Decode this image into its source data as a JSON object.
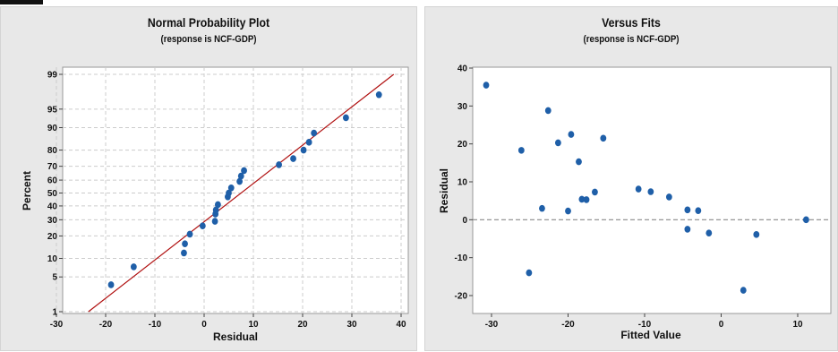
{
  "chart_data": [
    {
      "type": "scatter",
      "title": "Normal Probability Plot",
      "subtitle": "(response is NCF-GDP)",
      "xlabel": "Residual",
      "ylabel": "Percent",
      "xlim": [
        -30,
        40
      ],
      "y_scale": "normal-probability",
      "x_ticks": [
        -30,
        -20,
        -10,
        0,
        10,
        20,
        30,
        40
      ],
      "y_ticks": [
        1,
        5,
        10,
        20,
        30,
        40,
        50,
        60,
        70,
        80,
        90,
        95,
        99
      ],
      "grid": true,
      "fit_line": {
        "from": [
          -23.5,
          1
        ],
        "to": [
          38.5,
          99
        ]
      },
      "points": [
        {
          "x": -18.9,
          "y": 3.6
        },
        {
          "x": -14.3,
          "y": 7.4
        },
        {
          "x": -4.1,
          "y": 12
        },
        {
          "x": -3.9,
          "y": 16
        },
        {
          "x": -2.9,
          "y": 21
        },
        {
          "x": -0.3,
          "y": 26
        },
        {
          "x": 2.2,
          "y": 29
        },
        {
          "x": 2.3,
          "y": 34
        },
        {
          "x": 2.4,
          "y": 37
        },
        {
          "x": 2.8,
          "y": 41
        },
        {
          "x": 4.8,
          "y": 47
        },
        {
          "x": 5.0,
          "y": 50
        },
        {
          "x": 5.5,
          "y": 54
        },
        {
          "x": 7.2,
          "y": 59
        },
        {
          "x": 7.5,
          "y": 63
        },
        {
          "x": 8.1,
          "y": 67
        },
        {
          "x": 15.2,
          "y": 71
        },
        {
          "x": 18.1,
          "y": 75
        },
        {
          "x": 20.2,
          "y": 80
        },
        {
          "x": 21.3,
          "y": 84
        },
        {
          "x": 22.3,
          "y": 88
        },
        {
          "x": 28.8,
          "y": 93
        },
        {
          "x": 35.5,
          "y": 97.3
        }
      ]
    },
    {
      "type": "scatter",
      "title": "Versus Fits",
      "subtitle": "(response is NCF-GDP)",
      "xlabel": "Fitted Value",
      "ylabel": "Residual",
      "xlim": [
        -34,
        13
      ],
      "ylim": [
        -23,
        41
      ],
      "x_ticks": [
        -30,
        -20,
        -10,
        0,
        10
      ],
      "y_ticks": [
        -20,
        -10,
        0,
        10,
        20,
        30,
        40
      ],
      "reference_line": 0,
      "grid": false,
      "points": [
        {
          "x": -30.7,
          "y": 35.5
        },
        {
          "x": -26.1,
          "y": 18.3
        },
        {
          "x": -25.1,
          "y": -14.0
        },
        {
          "x": -23.4,
          "y": 3.0
        },
        {
          "x": -22.6,
          "y": 28.8
        },
        {
          "x": -21.3,
          "y": 20.3
        },
        {
          "x": -20.0,
          "y": 2.3
        },
        {
          "x": -19.6,
          "y": 22.5
        },
        {
          "x": -18.6,
          "y": 15.3
        },
        {
          "x": -18.2,
          "y": 5.4
        },
        {
          "x": -17.6,
          "y": 5.3
        },
        {
          "x": -16.5,
          "y": 7.3
        },
        {
          "x": -15.4,
          "y": 21.5
        },
        {
          "x": -10.8,
          "y": 8.1
        },
        {
          "x": -9.2,
          "y": 7.4
        },
        {
          "x": -6.8,
          "y": 6.0
        },
        {
          "x": -4.4,
          "y": 2.6
        },
        {
          "x": -4.4,
          "y": -2.5
        },
        {
          "x": -3.0,
          "y": 2.4
        },
        {
          "x": -1.6,
          "y": -3.5
        },
        {
          "x": 2.9,
          "y": -18.6
        },
        {
          "x": 4.6,
          "y": -3.9
        },
        {
          "x": 11.1,
          "y": 0.0
        }
      ]
    }
  ],
  "colors": {
    "point": "#1f5fa8",
    "fit_line": "#b01010",
    "reference_line": "#8a8a8a",
    "grid": "#cccccc",
    "plot_bg": "#ffffff",
    "panel_bg": "#e8e8e8"
  }
}
